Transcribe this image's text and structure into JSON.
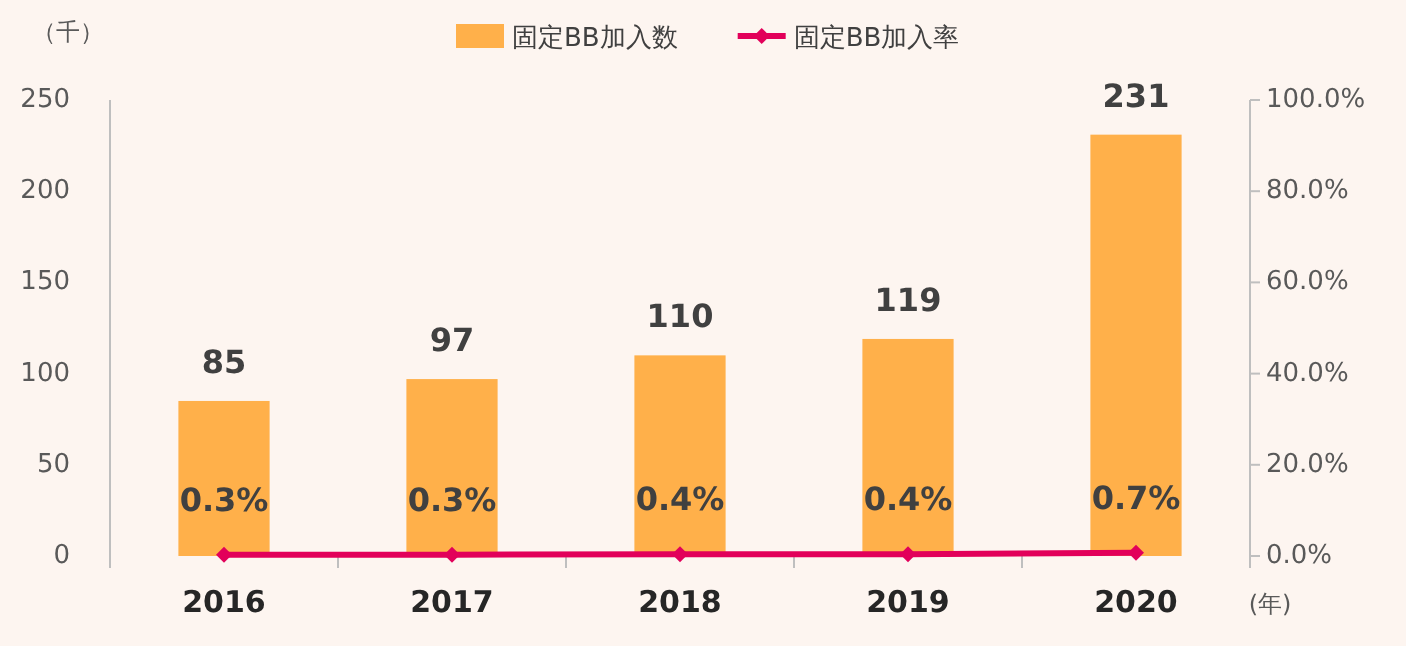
{
  "chart_data": {
    "type": "bar",
    "categories": [
      "2016",
      "2017",
      "2018",
      "2019",
      "2020"
    ],
    "series": [
      {
        "name": "固定BB加入数",
        "color": "#ffb04a",
        "values": [
          85,
          97,
          110,
          119,
          231
        ],
        "value_labels": [
          "85",
          "97",
          "110",
          "119",
          "231"
        ]
      },
      {
        "name": "固定BB加入率",
        "type": "line",
        "axis": "y2",
        "color": "#e2005a",
        "marker": "diamond",
        "values": [
          0.3,
          0.3,
          0.4,
          0.4,
          0.7
        ],
        "value_labels": [
          "0.3%",
          "0.3%",
          "0.4%",
          "0.4%",
          "0.7%"
        ]
      }
    ],
    "ylabel": "（千）",
    "xlabel": "(年)",
    "ylim": [
      0,
      250
    ],
    "yticks": [
      0,
      50,
      100,
      150,
      200,
      250
    ],
    "y2lim": [
      0,
      100
    ],
    "y2ticks": [
      {
        "value": 0,
        "label": "0.0%"
      },
      {
        "value": 20,
        "label": "20.0%"
      },
      {
        "value": 40,
        "label": "40.0%"
      },
      {
        "value": 60,
        "label": "60.0%"
      },
      {
        "value": 80,
        "label": "80.0%"
      },
      {
        "value": 100,
        "label": "100.0%"
      }
    ],
    "grid": false,
    "legend": "top"
  }
}
